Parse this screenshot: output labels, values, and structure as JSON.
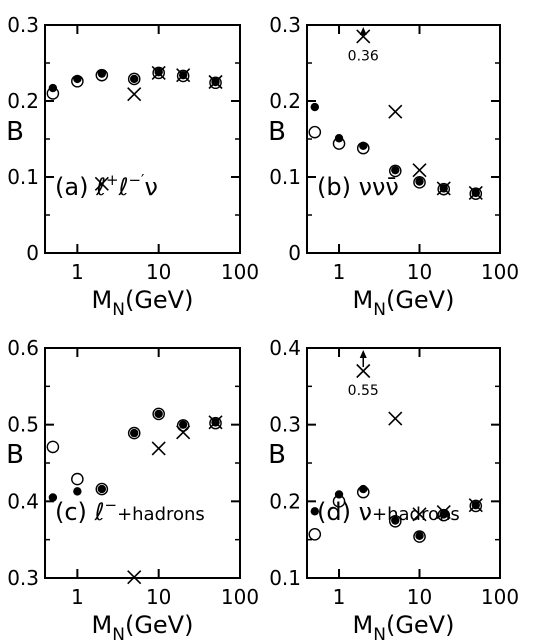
{
  "chart_data": [
    {
      "type": "scatter",
      "panel_label": [
        "(a) ",
        "ℓ",
        "+",
        "ℓ",
        "−′",
        "ν"
      ],
      "xlabel": [
        "M",
        "N",
        "(GeV)"
      ],
      "ylabel": "B",
      "xscale": "log",
      "xlim": [
        0.4,
        100
      ],
      "ylim": [
        0,
        0.3
      ],
      "xticks": [
        1,
        10,
        100
      ],
      "xtick_labels": [
        "1",
        "10",
        "100"
      ],
      "yticks": [
        0,
        0.1,
        0.2,
        0.3
      ],
      "ytick_labels": [
        "0",
        "0.1",
        "0.2",
        "0.3"
      ],
      "series": [
        {
          "marker": "filled-circle",
          "x": [
            0.5,
            1,
            2,
            5,
            10,
            20,
            50
          ],
          "y": [
            0.217,
            0.229,
            0.236,
            0.229,
            0.238,
            0.234,
            0.225
          ]
        },
        {
          "marker": "open-circle",
          "x": [
            0.5,
            1,
            2,
            5,
            10,
            20,
            50
          ],
          "y": [
            0.21,
            0.226,
            0.234,
            0.229,
            0.237,
            0.233,
            0.224
          ]
        },
        {
          "marker": "cross",
          "x": [
            2,
            5,
            10,
            20,
            50
          ],
          "y": [
            0.091,
            0.209,
            0.237,
            0.234,
            0.225
          ]
        }
      ],
      "annotations": []
    },
    {
      "type": "scatter",
      "panel_label": [
        "(b) ",
        "νν",
        "ν̄"
      ],
      "xlabel": [
        "M",
        "N",
        "(GeV)"
      ],
      "ylabel": "B",
      "xscale": "log",
      "xlim": [
        0.4,
        100
      ],
      "ylim": [
        0,
        0.3
      ],
      "xticks": [
        1,
        10,
        100
      ],
      "xtick_labels": [
        "1",
        "10",
        "100"
      ],
      "yticks": [
        0,
        0.1,
        0.2,
        0.3
      ],
      "ytick_labels": [
        "0",
        "0.1",
        "0.2",
        "0.3"
      ],
      "series": [
        {
          "marker": "filled-circle",
          "x": [
            0.5,
            1,
            2,
            5,
            10,
            20,
            50
          ],
          "y": [
            0.192,
            0.151,
            0.141,
            0.109,
            0.094,
            0.085,
            0.079
          ]
        },
        {
          "marker": "open-circle",
          "x": [
            0.5,
            1,
            2,
            5,
            10,
            20,
            50
          ],
          "y": [
            0.159,
            0.144,
            0.138,
            0.108,
            0.093,
            0.084,
            0.078
          ]
        },
        {
          "marker": "cross",
          "x": [
            2,
            5,
            10,
            20,
            50
          ],
          "y": [
            0.285,
            0.186,
            0.109,
            0.085,
            0.079
          ]
        }
      ],
      "annotations": [
        {
          "text": "0.36",
          "x": 2,
          "y": 0.285,
          "arrow": "up"
        }
      ]
    },
    {
      "type": "scatter",
      "panel_label": [
        "(c) ",
        "ℓ",
        "−",
        "+hadrons"
      ],
      "xlabel": [
        "M",
        "N",
        "(GeV)"
      ],
      "ylabel": "B",
      "xscale": "log",
      "xlim": [
        0.4,
        100
      ],
      "ylim": [
        0.3,
        0.6
      ],
      "xticks": [
        1,
        10,
        100
      ],
      "xtick_labels": [
        "1",
        "10",
        "100"
      ],
      "yticks": [
        0.3,
        0.4,
        0.5,
        0.6
      ],
      "ytick_labels": [
        "0.3",
        "0.4",
        "0.5",
        "0.6"
      ],
      "series": [
        {
          "marker": "filled-circle",
          "x": [
            0.5,
            1,
            2,
            5,
            10,
            20,
            50
          ],
          "y": [
            0.405,
            0.413,
            0.416,
            0.489,
            0.514,
            0.5,
            0.503
          ]
        },
        {
          "marker": "open-circle",
          "x": [
            0.5,
            1,
            2,
            5,
            10,
            20,
            50
          ],
          "y": [
            0.471,
            0.429,
            0.416,
            0.489,
            0.514,
            0.499,
            0.502
          ]
        },
        {
          "marker": "cross",
          "x": [
            5,
            10,
            20,
            50
          ],
          "y": [
            0.301,
            0.469,
            0.49,
            0.503
          ]
        }
      ],
      "annotations": []
    },
    {
      "type": "scatter",
      "panel_label": [
        "(d) ",
        "ν",
        "+hadrons"
      ],
      "xlabel": [
        "M",
        "N",
        "(GeV)"
      ],
      "ylabel": "B",
      "xscale": "log",
      "xlim": [
        0.4,
        100
      ],
      "ylim": [
        0.1,
        0.4
      ],
      "xticks": [
        1,
        10,
        100
      ],
      "xtick_labels": [
        "1",
        "10",
        "100"
      ],
      "yticks": [
        0.1,
        0.2,
        0.3,
        0.4
      ],
      "ytick_labels": [
        "0.1",
        "0.2",
        "0.3",
        "0.4"
      ],
      "series": [
        {
          "marker": "filled-circle",
          "x": [
            0.5,
            1,
            2,
            5,
            10,
            20,
            50
          ],
          "y": [
            0.187,
            0.209,
            0.216,
            0.175,
            0.155,
            0.183,
            0.195
          ]
        },
        {
          "marker": "open-circle",
          "x": [
            0.5,
            1,
            2,
            5,
            10,
            20,
            50
          ],
          "y": [
            0.157,
            0.2,
            0.212,
            0.174,
            0.154,
            0.182,
            0.194
          ]
        },
        {
          "marker": "cross",
          "x": [
            2,
            5,
            10,
            20,
            50
          ],
          "y": [
            0.37,
            0.308,
            0.183,
            0.186,
            0.195
          ]
        }
      ],
      "annotations": [
        {
          "text": "0.55",
          "x": 2,
          "y": 0.37,
          "arrow": "up"
        }
      ]
    }
  ]
}
